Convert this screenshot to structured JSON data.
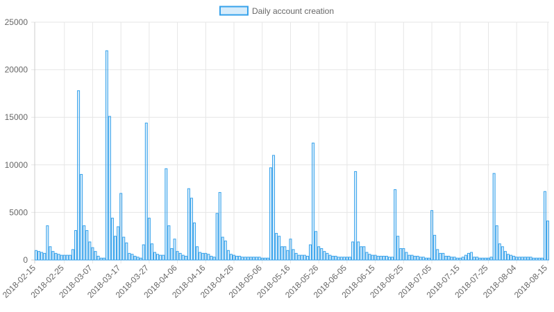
{
  "chart_data": {
    "type": "bar",
    "categories": [
      "2018-02-15",
      null,
      null,
      null,
      null,
      null,
      null,
      null,
      null,
      null,
      "2018-02-25",
      null,
      null,
      null,
      null,
      null,
      null,
      null,
      null,
      null,
      "2018-03-07",
      null,
      null,
      null,
      null,
      null,
      null,
      null,
      null,
      null,
      "2018-03-17",
      null,
      null,
      null,
      null,
      null,
      null,
      null,
      null,
      null,
      "2018-03-27",
      null,
      null,
      null,
      null,
      null,
      null,
      null,
      null,
      null,
      "2018-04-06",
      null,
      null,
      null,
      null,
      null,
      null,
      null,
      null,
      null,
      "2018-04-16",
      null,
      null,
      null,
      null,
      null,
      null,
      null,
      null,
      null,
      "2018-04-26",
      null,
      null,
      null,
      null,
      null,
      null,
      null,
      null,
      null,
      "2018-05-06",
      null,
      null,
      null,
      null,
      null,
      null,
      null,
      null,
      null,
      "2018-05-16",
      null,
      null,
      null,
      null,
      null,
      null,
      null,
      null,
      null,
      "2018-05-26",
      null,
      null,
      null,
      null,
      null,
      null,
      null,
      null,
      null,
      "2018-06-05",
      null,
      null,
      null,
      null,
      null,
      null,
      null,
      null,
      null,
      "2018-06-15",
      null,
      null,
      null,
      null,
      null,
      null,
      null,
      null,
      null,
      "2018-06-25",
      null,
      null,
      null,
      null,
      null,
      null,
      null,
      null,
      null,
      "2018-07-05",
      null,
      null,
      null,
      null,
      null,
      null,
      null,
      null,
      null,
      "2018-07-15",
      null,
      null,
      null,
      null,
      null,
      null,
      null,
      null,
      null,
      "2018-07-25",
      null,
      null,
      null,
      null,
      null,
      null,
      null,
      null,
      null,
      "2018-08-04",
      null,
      null,
      null,
      null,
      null,
      null,
      null,
      null,
      null,
      null,
      "2018-08-15"
    ],
    "series": [
      {
        "name": "Daily account creation",
        "color": "#36a2eb",
        "values": [
          1000,
          900,
          800,
          700,
          3600,
          1400,
          900,
          700,
          600,
          500,
          500,
          500,
          500,
          1100,
          3100,
          17800,
          9000,
          3600,
          3100,
          1900,
          1300,
          900,
          400,
          200,
          200,
          22000,
          15100,
          4400,
          2500,
          3500,
          7000,
          2400,
          1800,
          700,
          600,
          400,
          300,
          200,
          1600,
          14400,
          4400,
          1700,
          800,
          600,
          500,
          500,
          9600,
          3600,
          1200,
          2200,
          900,
          700,
          500,
          400,
          7500,
          6500,
          3900,
          1400,
          800,
          700,
          700,
          600,
          400,
          300,
          4900,
          7100,
          2400,
          2000,
          1000,
          600,
          500,
          400,
          400,
          300,
          300,
          300,
          300,
          300,
          300,
          300,
          200,
          200,
          200,
          9700,
          11000,
          2800,
          2500,
          1400,
          1400,
          1000,
          2200,
          1100,
          700,
          500,
          500,
          500,
          400,
          1600,
          12300,
          3000,
          1400,
          1200,
          900,
          700,
          500,
          400,
          400,
          300,
          300,
          300,
          300,
          300,
          1900,
          9300,
          1900,
          1400,
          1400,
          800,
          600,
          500,
          500,
          400,
          400,
          400,
          400,
          300,
          300,
          7400,
          2500,
          1200,
          1200,
          800,
          500,
          500,
          400,
          400,
          300,
          300,
          200,
          200,
          5200,
          2600,
          1100,
          700,
          700,
          400,
          400,
          300,
          300,
          200,
          200,
          300,
          500,
          700,
          800,
          300,
          300,
          200,
          200,
          200,
          200,
          300,
          9100,
          3600,
          1700,
          1400,
          900,
          600,
          500,
          400,
          300,
          300,
          300,
          300,
          300,
          300,
          200,
          200,
          200,
          200,
          7200,
          4100
        ]
      }
    ],
    "ylim": [
      0,
      25000
    ],
    "yticks": [
      0,
      5000,
      10000,
      15000,
      20000,
      25000
    ],
    "grid": true,
    "legend": "top"
  }
}
